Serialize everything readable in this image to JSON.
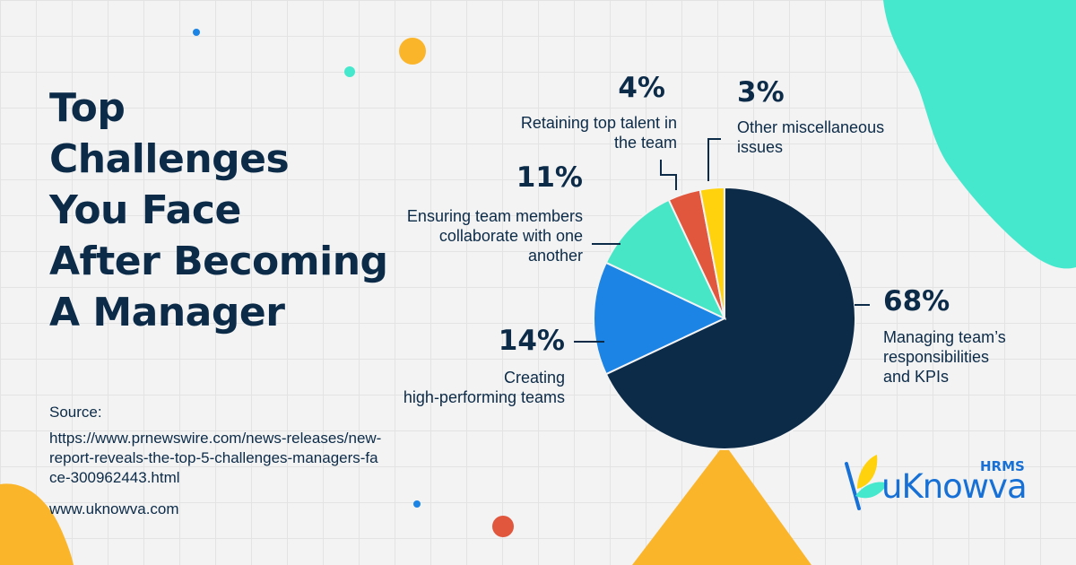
{
  "title_lines": [
    "Top",
    "Challenges",
    "You Face",
    "After Becoming",
    "A Manager"
  ],
  "source": {
    "label": "Source:",
    "url_lines": [
      "https://www.prnewswire.com/news-releases/new-",
      "report-reveals-the-top-5-challenges-managers-fa",
      "ce-300962443.html"
    ]
  },
  "website": "www.uknowva.com",
  "logo": {
    "word": "uKnowva",
    "tag": "HRMS"
  },
  "colors": {
    "navy": "#0c2b48",
    "blue": "#1b84e4",
    "mint": "#46e6c7",
    "red": "#e0573e",
    "yellow": "#ffd20d",
    "orange": "#fbb52b",
    "teal": "#45e8cd"
  },
  "chart_data": {
    "type": "pie",
    "unit": "%",
    "slices": [
      {
        "label_lines": [
          "Managing team’s",
          "responsibilities",
          "and KPIs"
        ],
        "value": 68,
        "display": "68%",
        "color": "#0c2b48"
      },
      {
        "label_lines": [
          "Creating",
          "high-performing teams"
        ],
        "value": 14,
        "display": "14%",
        "color": "#1b84e4"
      },
      {
        "label_lines": [
          "Ensuring team members",
          "collaborate with one",
          "another"
        ],
        "value": 11,
        "display": "11%",
        "color": "#46e6c7"
      },
      {
        "label_lines": [
          "Retaining top talent in",
          "the team"
        ],
        "value": 4,
        "display": "4%",
        "color": "#e0573e"
      },
      {
        "label_lines": [
          "Other miscellaneous",
          "issues"
        ],
        "value": 3,
        "display": "3%",
        "color": "#ffd20d"
      }
    ]
  }
}
